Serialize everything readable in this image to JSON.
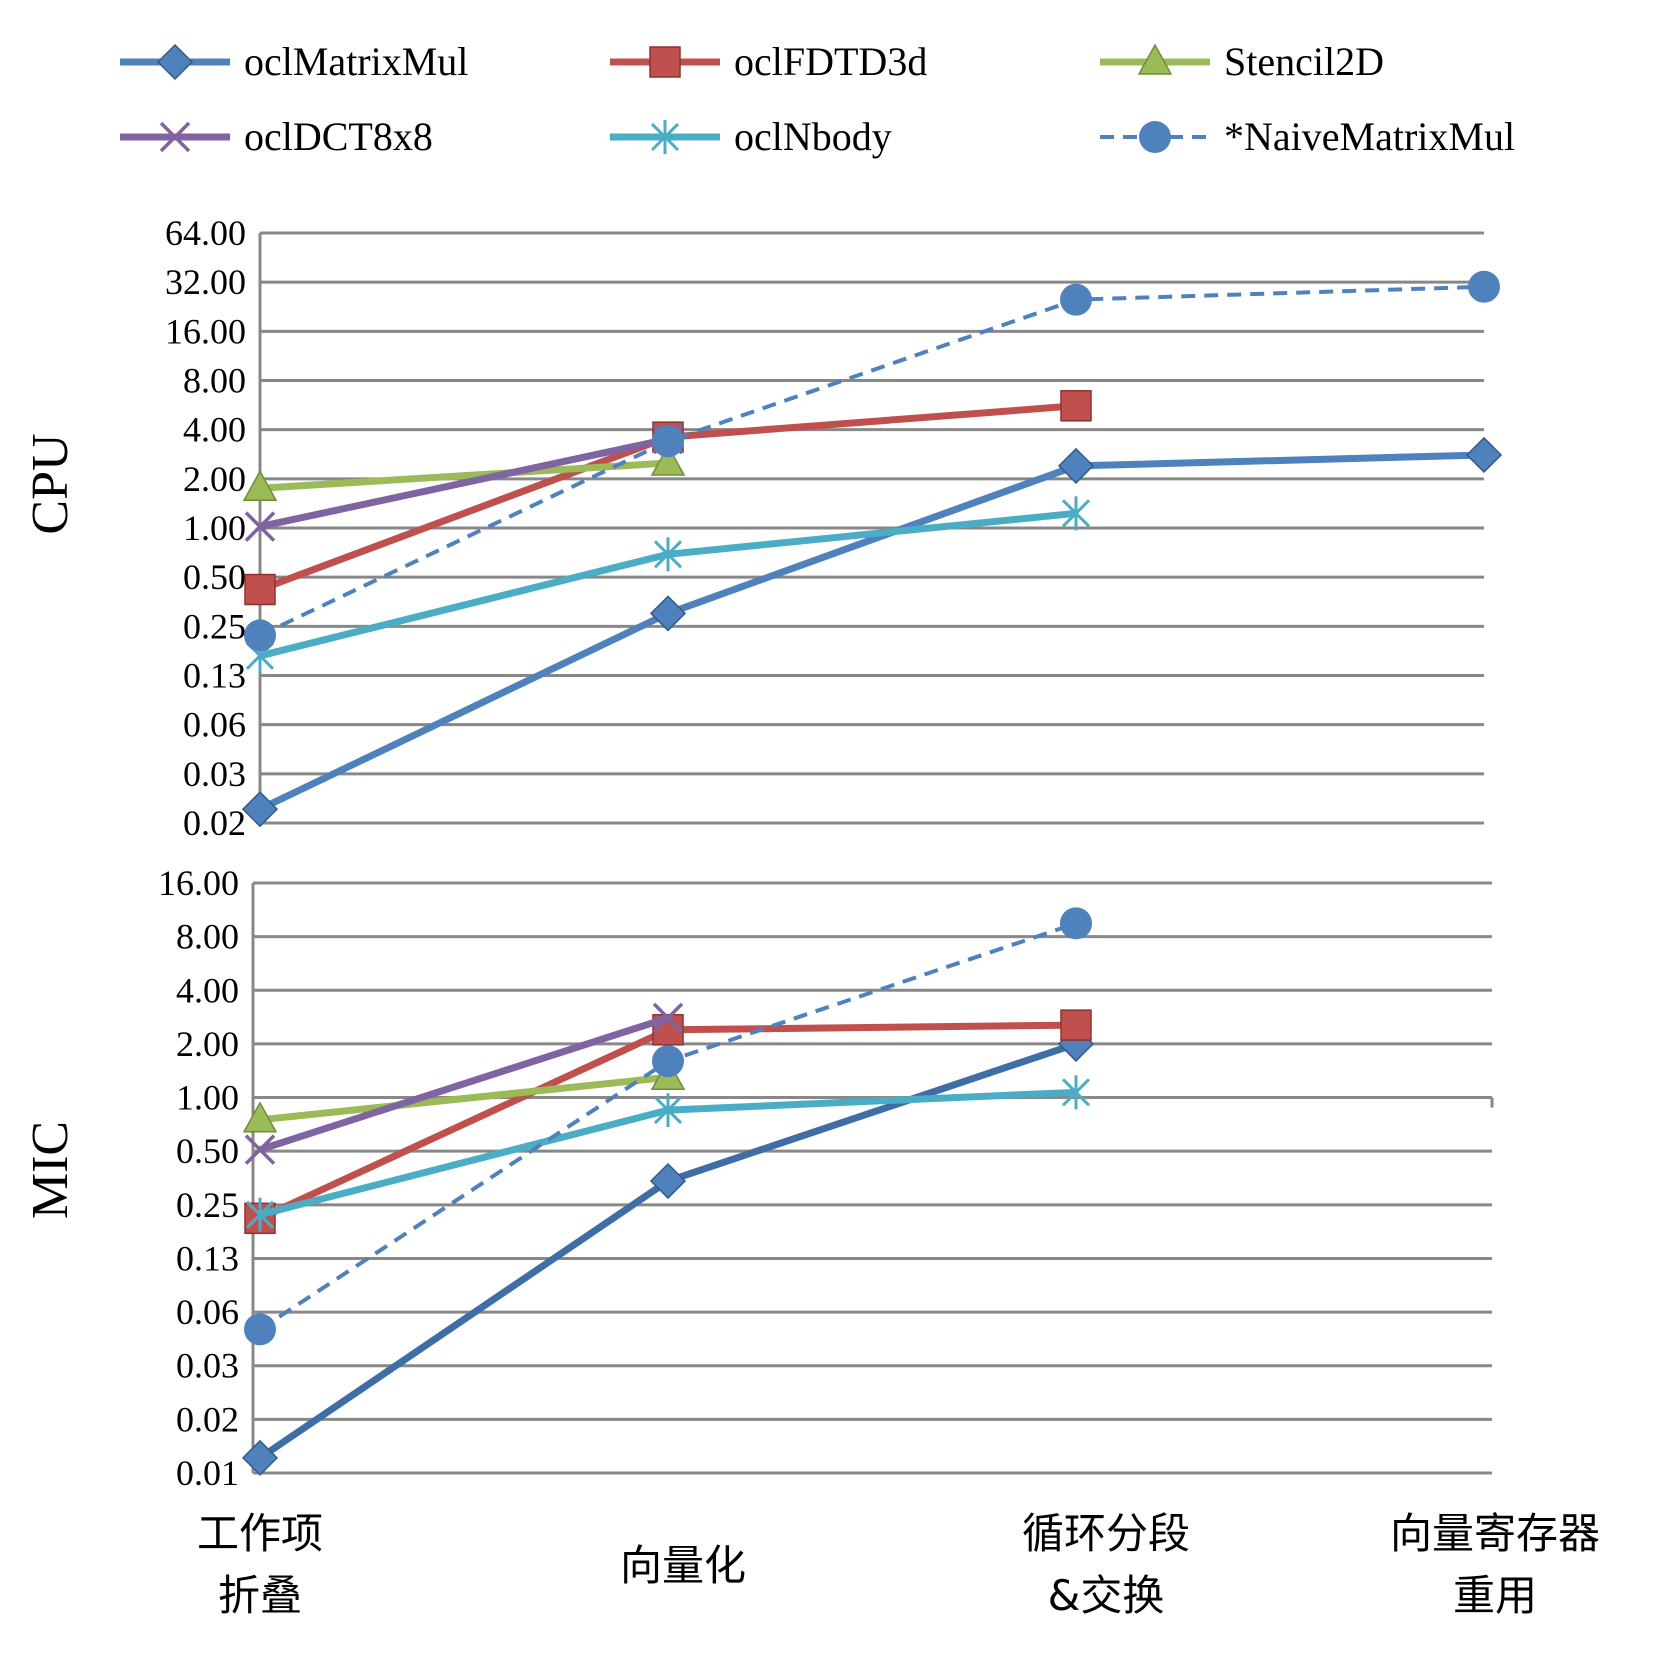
{
  "chart_data": {
    "type": "line",
    "y_scale": "log2",
    "categories": [
      [
        "工作项",
        "折叠"
      ],
      [
        "向量化"
      ],
      [
        "循环分段",
        "&交换"
      ],
      [
        "向量寄存器",
        "重用"
      ]
    ],
    "series_styles": [
      {
        "name": "oclMatrixMul",
        "color": "#4F81BD",
        "marker": "diamond",
        "dash": false
      },
      {
        "name": "oclFDTD3d",
        "color": "#C0504D",
        "marker": "square",
        "dash": false
      },
      {
        "name": "Stencil2D",
        "color": "#9BBB59",
        "marker": "triangle",
        "dash": false
      },
      {
        "name": "oclDCT8x8",
        "color": "#8064A2",
        "marker": "x",
        "dash": false
      },
      {
        "name": "oclNbody",
        "color": "#4BACC6",
        "marker": "star",
        "dash": false
      },
      {
        "name": "*NaiveMatrixMul",
        "color": "#4F81BD",
        "marker": "circle",
        "dash": true
      }
    ],
    "panels": [
      {
        "label": "CPU",
        "ylim": [
          0.015625,
          64
        ],
        "yticks": [
          {
            "value": 64,
            "label": "64.00"
          },
          {
            "value": 32,
            "label": "32.00"
          },
          {
            "value": 16,
            "label": "16.00"
          },
          {
            "value": 8,
            "label": "8.00"
          },
          {
            "value": 4,
            "label": "4.00"
          },
          {
            "value": 2,
            "label": "2.00"
          },
          {
            "value": 1,
            "label": "1.00"
          },
          {
            "value": 0.5,
            "label": "0.50"
          },
          {
            "value": 0.25,
            "label": "0.25"
          },
          {
            "value": 0.125,
            "label": "0.13"
          },
          {
            "value": 0.0625,
            "label": "0.06"
          },
          {
            "value": 0.03125,
            "label": "0.03"
          },
          {
            "value": 0.015625,
            "label": "0.02"
          }
        ],
        "series": [
          {
            "name": "oclMatrixMul",
            "values": [
              0.019,
              0.3,
              2.4,
              2.8
            ]
          },
          {
            "name": "oclFDTD3d",
            "values": [
              0.42,
              3.6,
              5.6,
              null
            ]
          },
          {
            "name": "Stencil2D",
            "values": [
              1.75,
              2.5,
              null,
              null
            ]
          },
          {
            "name": "oclDCT8x8",
            "values": [
              1.02,
              3.5,
              null,
              null
            ]
          },
          {
            "name": "oclNbody",
            "values": [
              0.165,
              0.69,
              1.23,
              null
            ]
          },
          {
            "name": "*NaiveMatrixMul",
            "values": [
              0.22,
              3.4,
              25.0,
              30.0
            ]
          }
        ]
      },
      {
        "label": "MIC",
        "ylim": [
          0.0078125,
          16
        ],
        "yticks": [
          {
            "value": 16,
            "label": "16.00"
          },
          {
            "value": 8,
            "label": "8.00"
          },
          {
            "value": 4,
            "label": "4.00"
          },
          {
            "value": 2,
            "label": "2.00"
          },
          {
            "value": 1,
            "label": "1.00"
          },
          {
            "value": 0.5,
            "label": "0.50"
          },
          {
            "value": 0.25,
            "label": "0.25"
          },
          {
            "value": 0.125,
            "label": "0.13"
          },
          {
            "value": 0.0625,
            "label": "0.06"
          },
          {
            "value": 0.03125,
            "label": "0.03"
          },
          {
            "value": 0.015625,
            "label": "0.02"
          },
          {
            "value": 0.0078125,
            "label": "0.01"
          }
        ],
        "series": [
          {
            "name": "oclMatrixMul",
            "values": [
              0.0095,
              0.34,
              2.0,
              null
            ]
          },
          {
            "name": "oclFDTD3d",
            "values": [
              0.21,
              2.4,
              2.55,
              null
            ]
          },
          {
            "name": "Stencil2D",
            "values": [
              0.75,
              1.3,
              null,
              null
            ]
          },
          {
            "name": "oclDCT8x8",
            "values": [
              0.51,
              2.8,
              null,
              null
            ]
          },
          {
            "name": "oclNbody",
            "values": [
              0.22,
              0.85,
              1.07,
              null
            ]
          },
          {
            "name": "*NaiveMatrixMul",
            "values": [
              0.05,
              1.6,
              9.5,
              null
            ]
          }
        ]
      }
    ],
    "legend": {
      "placement": "top",
      "columns": 3
    }
  }
}
